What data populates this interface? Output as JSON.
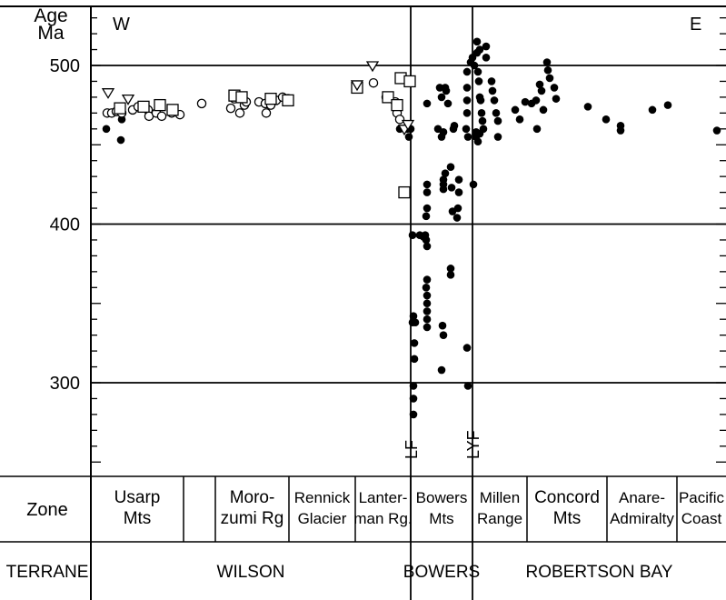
{
  "chart_data": {
    "type": "scatter",
    "title": "",
    "ylabel": "Age Ma",
    "ylabel_lines": [
      "Age",
      "Ma"
    ],
    "ylim": [
      250,
      540
    ],
    "yticks": [
      300,
      400,
      500
    ],
    "grid_y": true,
    "direction_labels": {
      "west": "W",
      "east": "E"
    },
    "faults": [
      {
        "label": "LF",
        "x": 452
      },
      {
        "label": "LYF",
        "x": 520
      }
    ],
    "zone_header": "Zone",
    "terrane_header": "TERRANE",
    "zones": [
      {
        "lines": [
          "Usarp",
          "Mts"
        ],
        "x_from": 100,
        "x_to": 202
      },
      {
        "lines": [
          ""
        ],
        "x_from": 202,
        "x_to": 237
      },
      {
        "lines": [
          "Moro-",
          "zumi Rg"
        ],
        "x_from": 237,
        "x_to": 318
      },
      {
        "lines": [
          "Rennick",
          "Glacier"
        ],
        "x_from": 318,
        "x_to": 391
      },
      {
        "lines": [
          "Lanter-",
          "man Rg."
        ],
        "x_from": 391,
        "x_to": 452
      },
      {
        "lines": [
          "Bowers",
          "Mts"
        ],
        "x_from": 452,
        "x_to": 520
      },
      {
        "lines": [
          "Millen",
          "Range"
        ],
        "x_from": 520,
        "x_to": 580
      },
      {
        "lines": [
          "Concord",
          "Mts"
        ],
        "x_from": 580,
        "x_to": 668
      },
      {
        "lines": [
          "Anare-",
          "Admiralty"
        ],
        "x_from": 668,
        "x_to": 745
      },
      {
        "lines": [
          "Pacific",
          "Coast"
        ],
        "x_from": 745,
        "x_to": 799
      }
    ],
    "terranes": [
      {
        "name": "WILSON",
        "x_from": 100,
        "x_to": 452
      },
      {
        "name": "BOWERS",
        "x_from": 452,
        "x_to": 520
      },
      {
        "name": "ROBERTSON BAY",
        "x_from": 520,
        "x_to": 799
      }
    ],
    "series": [
      {
        "marker": "filled-circle",
        "points": [
          [
            117,
            460
          ],
          [
            134,
            466
          ],
          [
            133,
            453
          ],
          [
            440,
            460
          ],
          [
            450,
            455
          ],
          [
            448,
            460
          ],
          [
            452,
            460
          ],
          [
            454,
            393
          ],
          [
            455,
            342
          ],
          [
            456,
            325
          ],
          [
            456,
            315
          ],
          [
            455,
            298
          ],
          [
            455,
            290
          ],
          [
            455,
            280
          ],
          [
            454,
            338
          ],
          [
            457,
            338
          ],
          [
            462,
            393
          ],
          [
            466,
            392
          ],
          [
            468,
            393
          ],
          [
            469,
            390
          ],
          [
            470,
            386
          ],
          [
            470,
            476
          ],
          [
            470,
            425
          ],
          [
            470,
            420
          ],
          [
            470,
            410
          ],
          [
            469,
            405
          ],
          [
            470,
            365
          ],
          [
            469,
            360
          ],
          [
            470,
            355
          ],
          [
            470,
            350
          ],
          [
            470,
            345
          ],
          [
            470,
            340
          ],
          [
            470,
            335
          ],
          [
            484,
            486
          ],
          [
            486,
            480
          ],
          [
            490,
            486
          ],
          [
            491,
            484
          ],
          [
            493,
            476
          ],
          [
            482,
            460
          ],
          [
            488,
            458
          ],
          [
            486,
            455
          ],
          [
            488,
            428
          ],
          [
            488,
            425
          ],
          [
            488,
            422
          ],
          [
            490,
            432
          ],
          [
            496,
            436
          ],
          [
            487,
            336
          ],
          [
            488,
            330
          ],
          [
            486,
            308
          ],
          [
            496,
            372
          ],
          [
            496,
            368
          ],
          [
            497,
            423
          ],
          [
            498,
            408
          ],
          [
            503,
            404
          ],
          [
            505,
            428
          ],
          [
            505,
            420
          ],
          [
            504,
            410
          ],
          [
            499,
            460
          ],
          [
            500,
            462
          ],
          [
            514,
            322
          ],
          [
            515,
            298
          ],
          [
            521,
            425
          ],
          [
            514,
            496
          ],
          [
            514,
            486
          ],
          [
            514,
            478
          ],
          [
            514,
            470
          ],
          [
            513,
            460
          ],
          [
            515,
            455
          ],
          [
            518,
            502
          ],
          [
            520,
            505
          ],
          [
            522,
            500
          ],
          [
            525,
            508
          ],
          [
            526,
            496
          ],
          [
            527,
            490
          ],
          [
            528,
            480
          ],
          [
            529,
            478
          ],
          [
            530,
            470
          ],
          [
            531,
            465
          ],
          [
            524,
            458
          ],
          [
            524,
            455
          ],
          [
            526,
            452
          ],
          [
            528,
            457
          ],
          [
            532,
            460
          ],
          [
            525,
            515
          ],
          [
            528,
            510
          ],
          [
            535,
            512
          ],
          [
            535,
            505
          ],
          [
            541,
            490
          ],
          [
            542,
            484
          ],
          [
            544,
            478
          ],
          [
            546,
            470
          ],
          [
            548,
            465
          ],
          [
            548,
            455
          ],
          [
            567,
            472
          ],
          [
            572,
            466
          ],
          [
            578,
            477
          ],
          [
            585,
            476
          ],
          [
            590,
            478
          ],
          [
            591,
            460
          ],
          [
            594,
            488
          ],
          [
            596,
            484
          ],
          [
            598,
            472
          ],
          [
            602,
            502
          ],
          [
            603,
            497
          ],
          [
            605,
            492
          ],
          [
            610,
            486
          ],
          [
            612,
            479
          ],
          [
            647,
            474
          ],
          [
            667,
            466
          ],
          [
            683,
            462
          ],
          [
            683,
            459
          ],
          [
            718,
            472
          ],
          [
            735,
            475
          ],
          [
            789,
            459
          ]
        ]
      },
      {
        "marker": "open-circle",
        "points": [
          [
            118,
            470
          ],
          [
            123,
            470
          ],
          [
            128,
            471
          ],
          [
            134,
            470
          ],
          [
            146,
            472
          ],
          [
            152,
            474
          ],
          [
            163,
            472
          ],
          [
            164,
            468
          ],
          [
            172,
            470
          ],
          [
            178,
            468
          ],
          [
            189,
            470
          ],
          [
            198,
            469
          ],
          [
            222,
            476
          ],
          [
            254,
            473
          ],
          [
            258,
            479
          ],
          [
            264,
            470
          ],
          [
            269,
            475
          ],
          [
            271,
            477
          ],
          [
            285,
            477
          ],
          [
            292,
            476
          ],
          [
            293,
            470
          ],
          [
            298,
            475
          ],
          [
            304,
            478
          ],
          [
            311,
            480
          ],
          [
            317,
            479
          ],
          [
            411,
            489
          ],
          [
            425,
            480
          ],
          [
            435,
            477
          ],
          [
            437,
            470
          ],
          [
            440,
            466
          ]
        ]
      },
      {
        "marker": "open-square",
        "points": [
          [
            132,
            473
          ],
          [
            158,
            474
          ],
          [
            176,
            475
          ],
          [
            190,
            472
          ],
          [
            258,
            481
          ],
          [
            266,
            480
          ],
          [
            298,
            479
          ],
          [
            317,
            478
          ],
          [
            393,
            486
          ],
          [
            427,
            480
          ],
          [
            437,
            475
          ],
          [
            441,
            492
          ],
          [
            451,
            490
          ],
          [
            445,
            420
          ]
        ]
      },
      {
        "marker": "open-triangle-down",
        "points": [
          [
            119,
            483
          ],
          [
            141,
            479
          ],
          [
            393,
            488
          ],
          [
            410,
            500
          ],
          [
            445,
            460
          ],
          [
            449,
            463
          ]
        ]
      }
    ]
  }
}
